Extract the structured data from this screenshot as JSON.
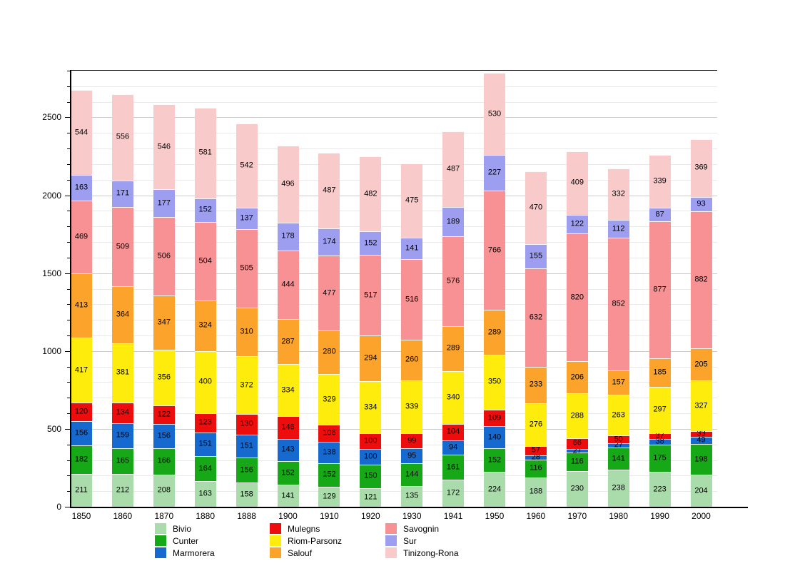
{
  "chart_data": {
    "type": "bar",
    "stacked": true,
    "title": "",
    "xlabel": "",
    "ylabel": "",
    "ylim": [
      0,
      2800
    ],
    "ytick_major": [
      0,
      500,
      1000,
      1500,
      2000,
      2500
    ],
    "ytick_minor_step": 100,
    "grid": "horizontal",
    "legend_position": "bottom",
    "categories": [
      "1850",
      "1860",
      "1870",
      "1880",
      "1888",
      "1900",
      "1910",
      "1920",
      "1930",
      "1941",
      "1950",
      "1960",
      "1970",
      "1980",
      "1990",
      "2000"
    ],
    "series": [
      {
        "name": "Bivio",
        "color": "#a9dcaa",
        "values": [
          211,
          212,
          208,
          163,
          158,
          141,
          129,
          121,
          135,
          172,
          224,
          188,
          230,
          238,
          223,
          204
        ]
      },
      {
        "name": "Cunter",
        "color": "#16a816",
        "values": [
          182,
          165,
          166,
          164,
          156,
          152,
          152,
          150,
          144,
          161,
          152,
          116,
          116,
          141,
          175,
          198
        ]
      },
      {
        "name": "Marmorera",
        "color": "#1569cf",
        "values": [
          156,
          159,
          156,
          151,
          151,
          143,
          138,
          100,
          95,
          94,
          140,
          28,
          27,
          27,
          38,
          49
        ]
      },
      {
        "name": "Mulegns",
        "color": "#ee0d0d",
        "values": [
          120,
          134,
          122,
          123,
          130,
          146,
          106,
          100,
          99,
          104,
          109,
          57,
          66,
          50,
          37,
          33
        ]
      },
      {
        "name": "Riom-Parsonz",
        "color": "#fdec0c",
        "values": [
          417,
          381,
          356,
          400,
          372,
          334,
          329,
          334,
          339,
          340,
          350,
          276,
          288,
          263,
          297,
          327
        ]
      },
      {
        "name": "Salouf",
        "color": "#fba32b",
        "values": [
          413,
          364,
          347,
          324,
          310,
          287,
          280,
          294,
          260,
          289,
          289,
          233,
          206,
          157,
          185,
          205
        ]
      },
      {
        "name": "Savognin",
        "color": "#f89193",
        "values": [
          469,
          509,
          506,
          504,
          505,
          444,
          477,
          517,
          516,
          576,
          766,
          632,
          820,
          852,
          877,
          882
        ]
      },
      {
        "name": "Sur",
        "color": "#9e9ef0",
        "values": [
          163,
          171,
          177,
          152,
          137,
          178,
          174,
          152,
          141,
          189,
          227,
          155,
          122,
          112,
          87,
          93
        ]
      },
      {
        "name": "Tinizong-Rona",
        "color": "#f9caca",
        "values": [
          544,
          556,
          546,
          581,
          542,
          496,
          487,
          482,
          475,
          487,
          530,
          470,
          409,
          332,
          339,
          369
        ]
      }
    ],
    "legend_columns": [
      [
        "Bivio",
        "Cunter",
        "Marmorera"
      ],
      [
        "Mulegns",
        "Riom-Parsonz",
        "Salouf"
      ],
      [
        "Savognin",
        "Sur",
        "Tinizong-Rona"
      ]
    ],
    "grid_minor_color": "#e9e9e9",
    "grid_major_color": "#cccccc"
  }
}
